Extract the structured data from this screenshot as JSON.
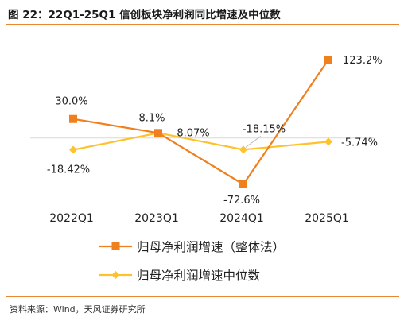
{
  "header": {
    "title": "图 22：22Q1-25Q1 信创板块净利润同比增速及中位数"
  },
  "footer": {
    "source": "资料来源：Wind，天风证券研究所"
  },
  "colors": {
    "accent_rule": "#e8862e",
    "series_overall": "#f07f1e",
    "series_median": "#fdc22c",
    "zero_line": "#d9d9d9"
  },
  "chart_data": {
    "type": "line",
    "title": "",
    "xlabel": "",
    "ylabel": "",
    "categories": [
      "2022Q1",
      "2023Q1",
      "2024Q1",
      "2025Q1"
    ],
    "ylim": [
      -100,
      160
    ],
    "grid": false,
    "legend_position": "bottom",
    "series": [
      {
        "name": "归母净利润增速（整体法）",
        "color": "#f07f1e",
        "marker": "square",
        "values": [
          30.0,
          8.1,
          -72.6,
          123.2
        ],
        "labels": [
          "30.0%",
          "8.1%",
          "-72.6%",
          "123.2%"
        ]
      },
      {
        "name": "归母净利润增速中位数",
        "color": "#fdc22c",
        "marker": "diamond",
        "values": [
          -18.42,
          8.07,
          -18.15,
          -5.74
        ],
        "labels": [
          "-18.42%",
          "8.07%",
          "-18.15%",
          "-5.74%"
        ]
      }
    ]
  }
}
